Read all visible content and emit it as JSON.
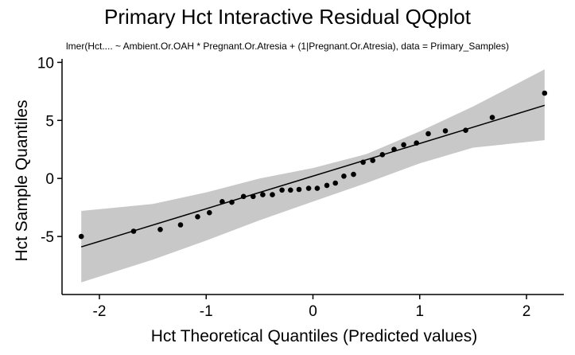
{
  "chart_data": {
    "type": "scatter",
    "title": "Primary Hct Interactive Residual QQplot",
    "subtitle": "lmer(Hct.... ~ Ambient.Or.OAH * Pregnant.Or.Atresia + (1|Pregnant.Or.Atresia), data = Primary_Samples)",
    "xlabel": "Hct Theoretical Quantiles (Predicted values)",
    "ylabel": "Hct Sample Quantiles",
    "xlim": [
      -2.35,
      2.35
    ],
    "ylim": [
      -10,
      10.3
    ],
    "x_ticks": [
      -2,
      -1,
      0,
      1,
      2
    ],
    "x_tick_labels": [
      "-2",
      "-1",
      "0",
      "1",
      "2"
    ],
    "y_ticks": [
      -5,
      0,
      5,
      10
    ],
    "y_tick_labels": [
      "-5",
      "0",
      "5",
      "10"
    ],
    "grid": false,
    "points": [
      {
        "x": -2.17,
        "y": -5.0
      },
      {
        "x": -1.68,
        "y": -4.55
      },
      {
        "x": -1.43,
        "y": -4.4
      },
      {
        "x": -1.24,
        "y": -4.0
      },
      {
        "x": -1.08,
        "y": -3.3
      },
      {
        "x": -0.97,
        "y": -2.95
      },
      {
        "x": -0.85,
        "y": -2.0
      },
      {
        "x": -0.76,
        "y": -2.05
      },
      {
        "x": -0.65,
        "y": -1.55
      },
      {
        "x": -0.56,
        "y": -1.55
      },
      {
        "x": -0.47,
        "y": -1.4
      },
      {
        "x": -0.38,
        "y": -1.4
      },
      {
        "x": -0.29,
        "y": -1.0
      },
      {
        "x": -0.21,
        "y": -1.0
      },
      {
        "x": -0.13,
        "y": -0.95
      },
      {
        "x": -0.04,
        "y": -0.85
      },
      {
        "x": 0.04,
        "y": -0.85
      },
      {
        "x": 0.13,
        "y": -0.6
      },
      {
        "x": 0.21,
        "y": -0.4
      },
      {
        "x": 0.29,
        "y": 0.2
      },
      {
        "x": 0.38,
        "y": 0.35
      },
      {
        "x": 0.47,
        "y": 1.4
      },
      {
        "x": 0.56,
        "y": 1.55
      },
      {
        "x": 0.65,
        "y": 2.05
      },
      {
        "x": 0.76,
        "y": 2.5
      },
      {
        "x": 0.85,
        "y": 2.9
      },
      {
        "x": 0.97,
        "y": 3.05
      },
      {
        "x": 1.08,
        "y": 3.85
      },
      {
        "x": 1.24,
        "y": 4.1
      },
      {
        "x": 1.43,
        "y": 4.15
      },
      {
        "x": 1.68,
        "y": 5.25
      },
      {
        "x": 2.17,
        "y": 7.35
      }
    ],
    "fit_line": {
      "x": [
        -2.17,
        2.17
      ],
      "y": [
        -5.9,
        6.3
      ]
    },
    "confidence_band": {
      "x": [
        -2.17,
        -1.5,
        -1.0,
        -0.5,
        0.0,
        0.5,
        1.0,
        1.5,
        2.17
      ],
      "lower": [
        -8.95,
        -7.0,
        -5.35,
        -3.6,
        -2.0,
        -0.4,
        1.3,
        2.65,
        3.3
      ],
      "upper": [
        -2.8,
        -2.2,
        -1.2,
        0.0,
        0.9,
        2.1,
        4.05,
        6.2,
        9.4
      ]
    },
    "colors": {
      "points": "#000000",
      "line": "#000000",
      "band": "#c8c8c8"
    }
  }
}
